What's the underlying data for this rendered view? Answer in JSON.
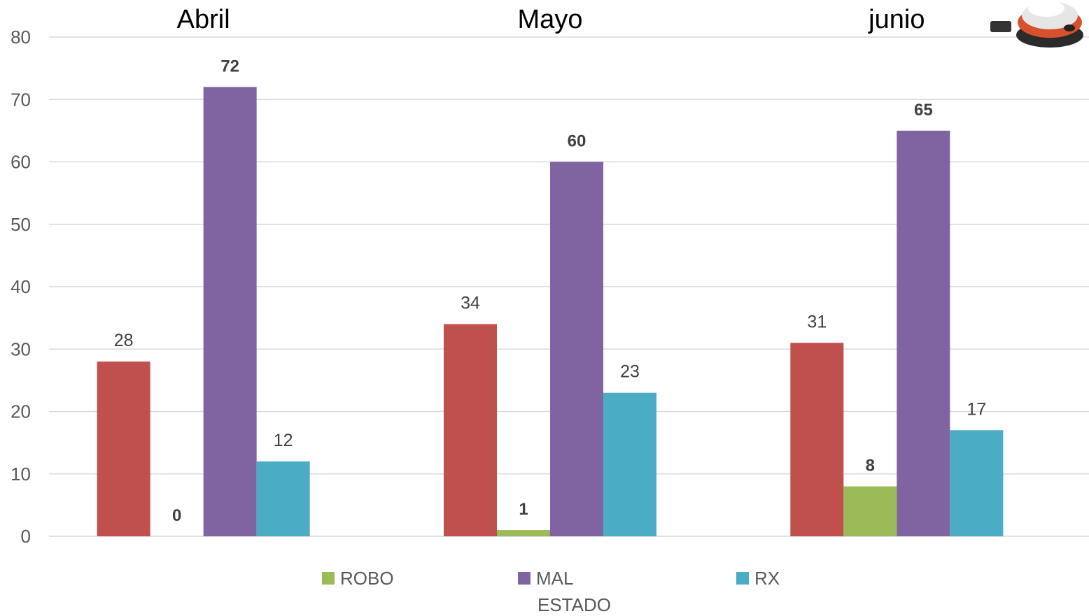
{
  "chart_data": {
    "type": "bar",
    "categories": [
      "Abril",
      "Mayo",
      "junio"
    ],
    "series": [
      {
        "name": "",
        "color": "#C0504D",
        "values": [
          28,
          34,
          31
        ],
        "label_bold": false
      },
      {
        "name": "ROBO",
        "color": "#9BBB59",
        "values": [
          0,
          1,
          8
        ],
        "label_bold": true
      },
      {
        "name": "MAL",
        "color": "#8064A2",
        "values": [
          72,
          60,
          65
        ],
        "label_bold": true
      },
      {
        "name": "RX",
        "color": "#4BACC6",
        "values": [
          12,
          23,
          17
        ],
        "label_bold": false
      }
    ],
    "ylim": [
      0,
      80
    ],
    "yticks": [
      0,
      10,
      20,
      30,
      40,
      50,
      60,
      70,
      80
    ],
    "grid": true,
    "legend_position": "bottom",
    "legend_extra_line": "ESTADO",
    "title": "",
    "xlabel": "",
    "ylabel": ""
  },
  "decor": {
    "logo_icon": "water-meter-icon"
  }
}
